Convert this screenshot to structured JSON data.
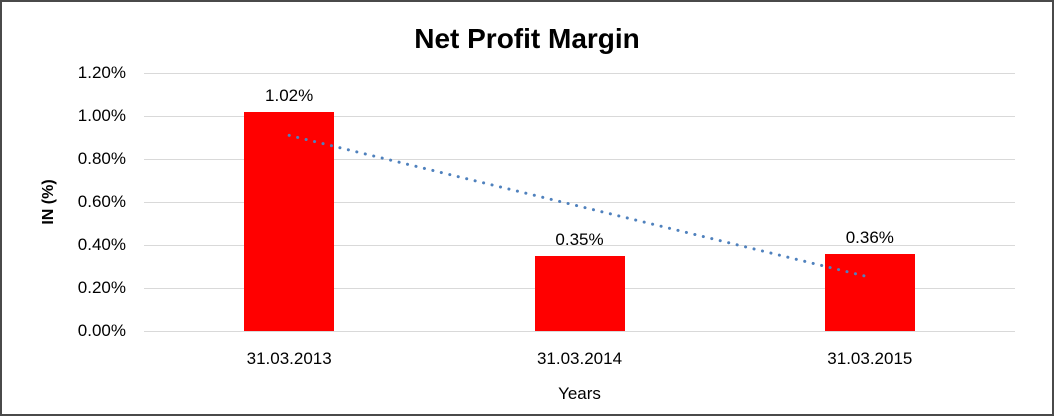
{
  "frame": {
    "background": "#FFFFFF",
    "border_color": "#4A4A4A"
  },
  "chart_data": {
    "type": "bar",
    "title": "Net Profit Margin",
    "xlabel": "Years",
    "ylabel": "IN (%)",
    "categories": [
      "31.03.2013",
      "31.03.2014",
      "31.03.2015"
    ],
    "series": [
      {
        "name": "Net Profit Margin",
        "values": [
          1.02,
          0.35,
          0.36
        ],
        "color": "#FF0000"
      }
    ],
    "data_labels": [
      "1.02%",
      "0.35%",
      "0.36%"
    ],
    "ylim": [
      0,
      1.2
    ],
    "yticks": [
      {
        "value": 0.0,
        "label": "0.00%"
      },
      {
        "value": 0.2,
        "label": "0.20%"
      },
      {
        "value": 0.4,
        "label": "0.40%"
      },
      {
        "value": 0.6,
        "label": "0.60%"
      },
      {
        "value": 0.8,
        "label": "0.80%"
      },
      {
        "value": 1.0,
        "label": "1.00%"
      },
      {
        "value": 1.2,
        "label": "1.20%"
      }
    ],
    "grid": true,
    "gridline_color": "#D9D9D9",
    "legend_position": "none",
    "trendline": {
      "type": "linear",
      "style": "dotted",
      "color": "#4F81BD",
      "y_start": 0.91,
      "y_end": 0.25
    }
  }
}
